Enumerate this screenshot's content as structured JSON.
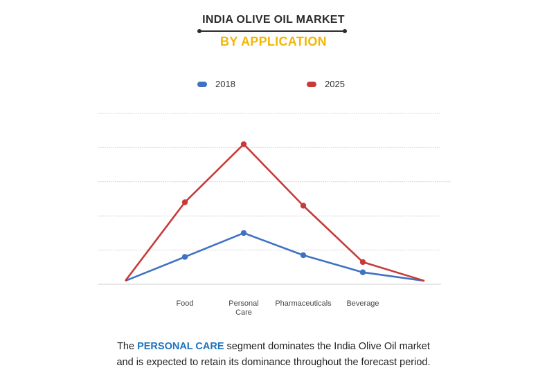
{
  "header": {
    "title": "INDIA OLIVE OIL MARKET",
    "subtitle": "BY APPLICATION"
  },
  "caption": {
    "before": "The ",
    "highlight": "PERSONAL CARE",
    "after_line1": " segment dominates the  India Olive Oil market",
    "line2": "and is expected to retain its dominance throughout the forecast period."
  },
  "colors": {
    "series_2018": "#3f73c1",
    "series_2025": "#c83a3a",
    "subtitle": "#f2b705",
    "highlight": "#1e73be"
  },
  "chart_data": {
    "type": "line",
    "categories": [
      "Food",
      "Personal Care",
      "Pharmaceuticals",
      "Beverage"
    ],
    "series": [
      {
        "name": "2018",
        "values": [
          0.8,
          1.5,
          0.85,
          0.35
        ]
      },
      {
        "name": "2025",
        "values": [
          2.4,
          4.1,
          2.3,
          0.65
        ]
      }
    ],
    "endpoint_value": 0.1,
    "ylim": [
      0,
      5
    ],
    "y_ticks_labeled": false,
    "grid": true,
    "legend_position": "top-center"
  }
}
